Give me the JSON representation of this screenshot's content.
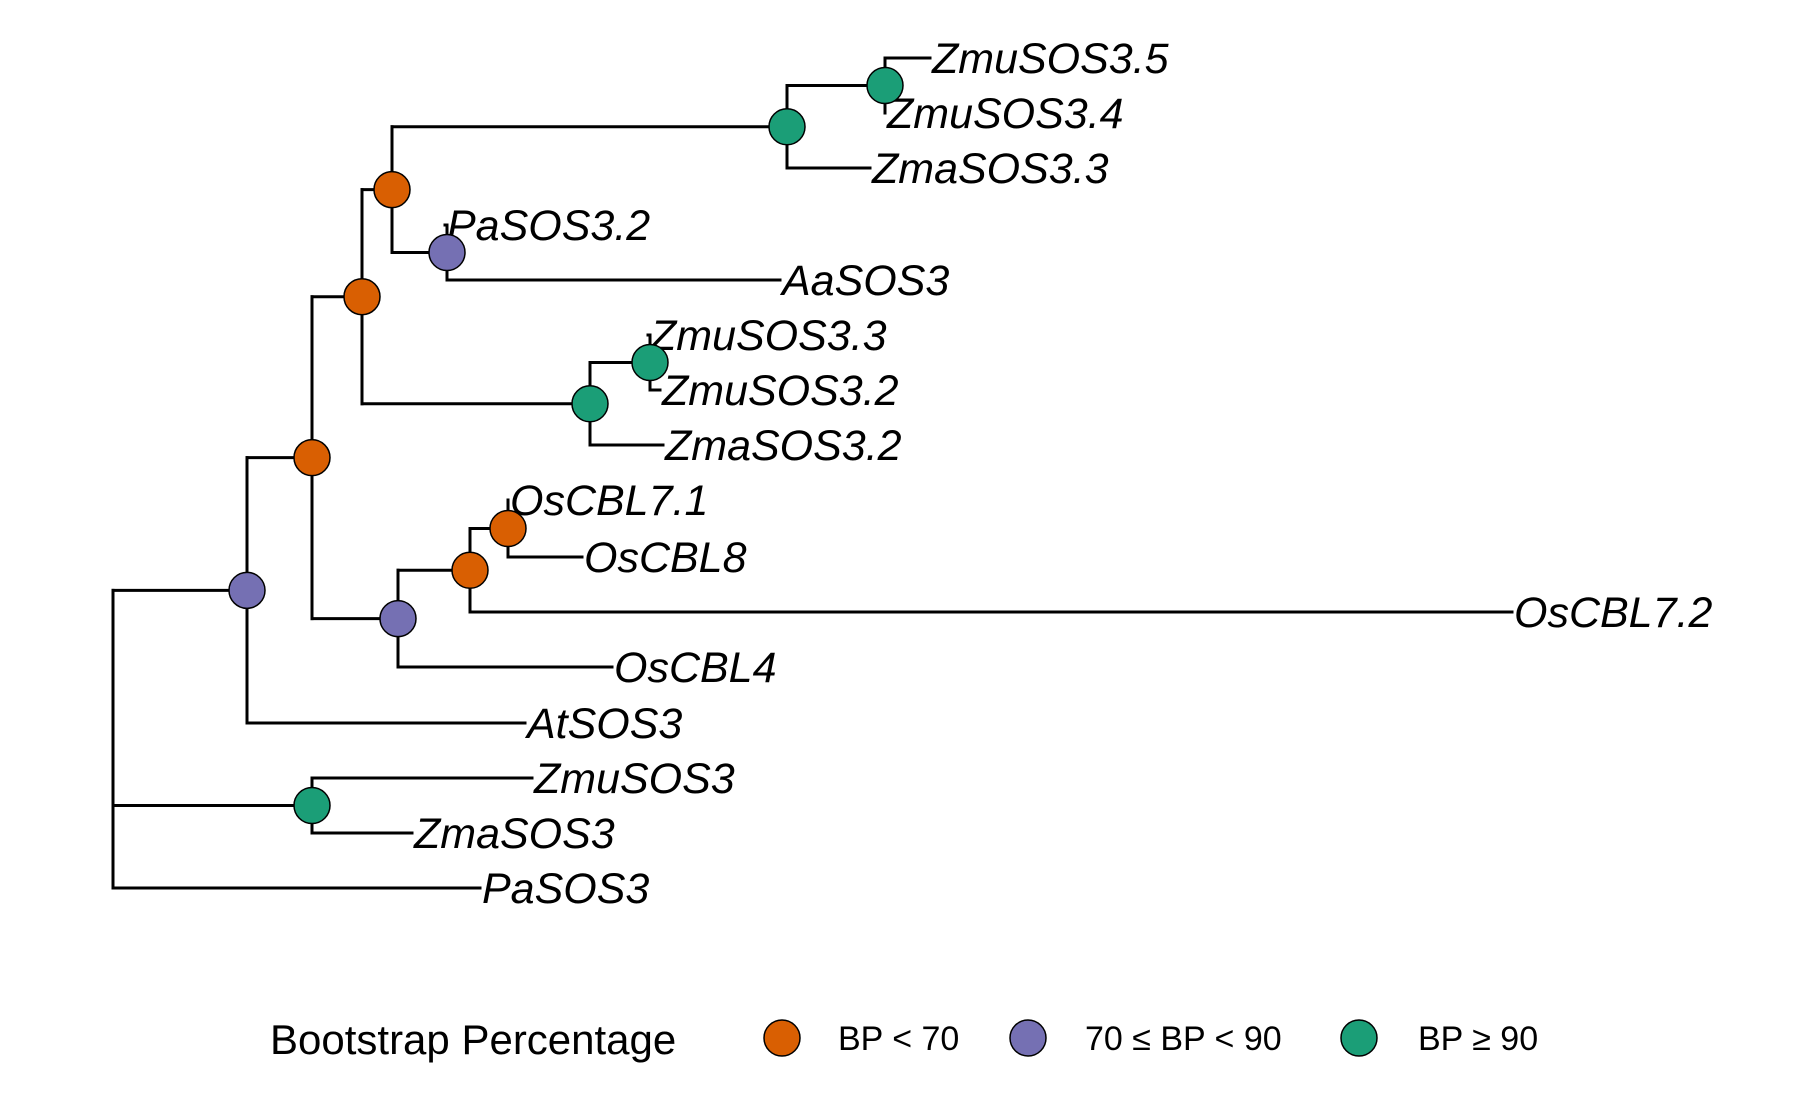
{
  "colors": {
    "low": "#D95F02",
    "mid": "#7570B3",
    "high": "#1B9E77"
  },
  "tree": {
    "tips": [
      {
        "id": "t1",
        "label": "ZmuSOS3.5"
      },
      {
        "id": "t2",
        "label": "ZmuSOS3.4"
      },
      {
        "id": "t3",
        "label": "ZmaSOS3.3"
      },
      {
        "id": "t4",
        "label": "PaSOS3.2"
      },
      {
        "id": "t5",
        "label": "AaSOS3"
      },
      {
        "id": "t6",
        "label": "ZmuSOS3.3"
      },
      {
        "id": "t7",
        "label": "ZmuSOS3.2"
      },
      {
        "id": "t8",
        "label": "ZmaSOS3.2"
      },
      {
        "id": "t9",
        "label": "OsCBL7.1"
      },
      {
        "id": "t10",
        "label": "OsCBL8"
      },
      {
        "id": "t11",
        "label": "OsCBL7.2"
      },
      {
        "id": "t12",
        "label": "OsCBL4"
      },
      {
        "id": "t13",
        "label": "AtSOS3"
      },
      {
        "id": "t14",
        "label": "ZmuSOS3"
      },
      {
        "id": "t15",
        "label": "ZmaSOS3"
      },
      {
        "id": "t16",
        "label": "PaSOS3"
      }
    ],
    "nodes": [
      {
        "id": "n1",
        "support": "mid"
      },
      {
        "id": "n2",
        "support": "low"
      },
      {
        "id": "n3",
        "support": "low"
      },
      {
        "id": "n4",
        "support": "low"
      },
      {
        "id": "n5",
        "support": "high"
      },
      {
        "id": "n6",
        "support": "high"
      },
      {
        "id": "n7",
        "support": "mid"
      },
      {
        "id": "n8",
        "support": "high"
      },
      {
        "id": "n9",
        "support": "high"
      },
      {
        "id": "n10",
        "support": "mid"
      },
      {
        "id": "n11",
        "support": "low"
      },
      {
        "id": "n12",
        "support": "low"
      },
      {
        "id": "n13",
        "support": "high"
      }
    ]
  },
  "legend": {
    "title": "Bootstrap Percentage",
    "items": [
      {
        "support": "low",
        "label": "BP < 70"
      },
      {
        "support": "mid",
        "label": "70 ≤ BP < 90"
      },
      {
        "support": "high",
        "label": "BP ≥ 90"
      }
    ]
  }
}
